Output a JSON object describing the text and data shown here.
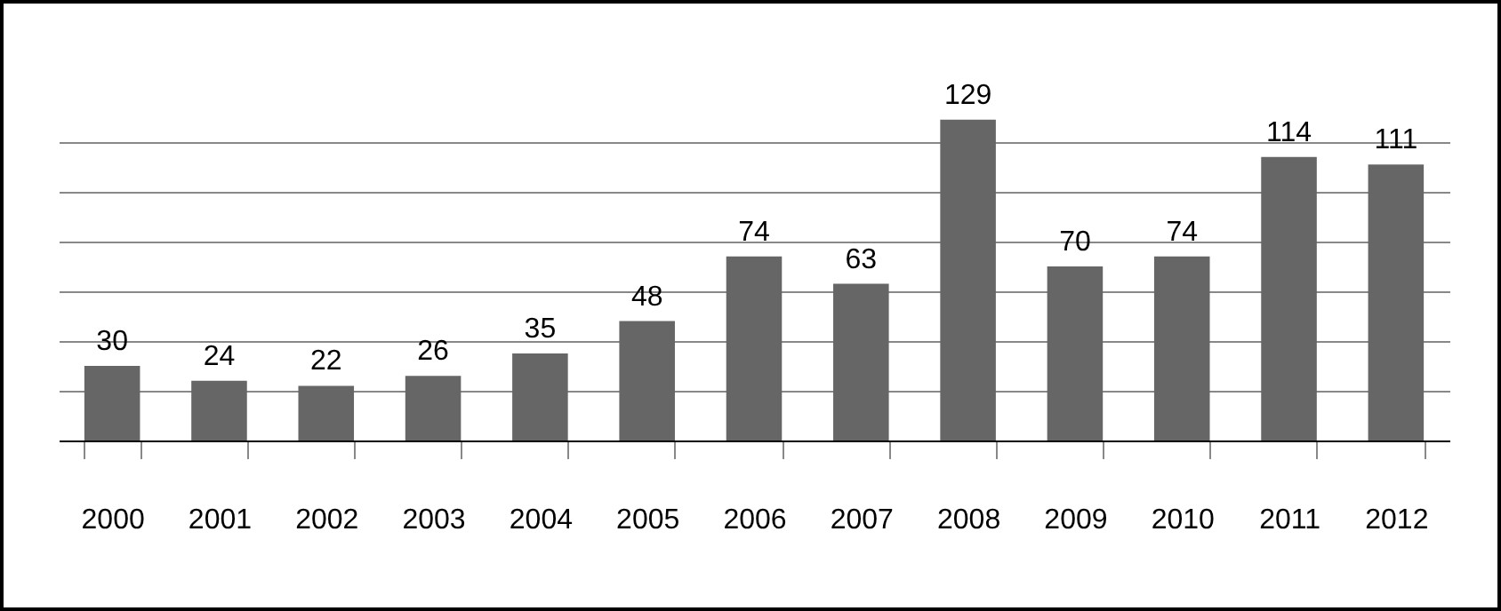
{
  "chart_data": {
    "type": "bar",
    "categories": [
      "2000",
      "2001",
      "2002",
      "2003",
      "2004",
      "2005",
      "2006",
      "2007",
      "2008",
      "2009",
      "2010",
      "2011",
      "2012"
    ],
    "values": [
      30,
      24,
      22,
      26,
      35,
      48,
      74,
      63,
      129,
      70,
      74,
      114,
      111
    ],
    "color": "#666666",
    "grid": "y",
    "tick_labels": "x",
    "data_labels": true
  }
}
